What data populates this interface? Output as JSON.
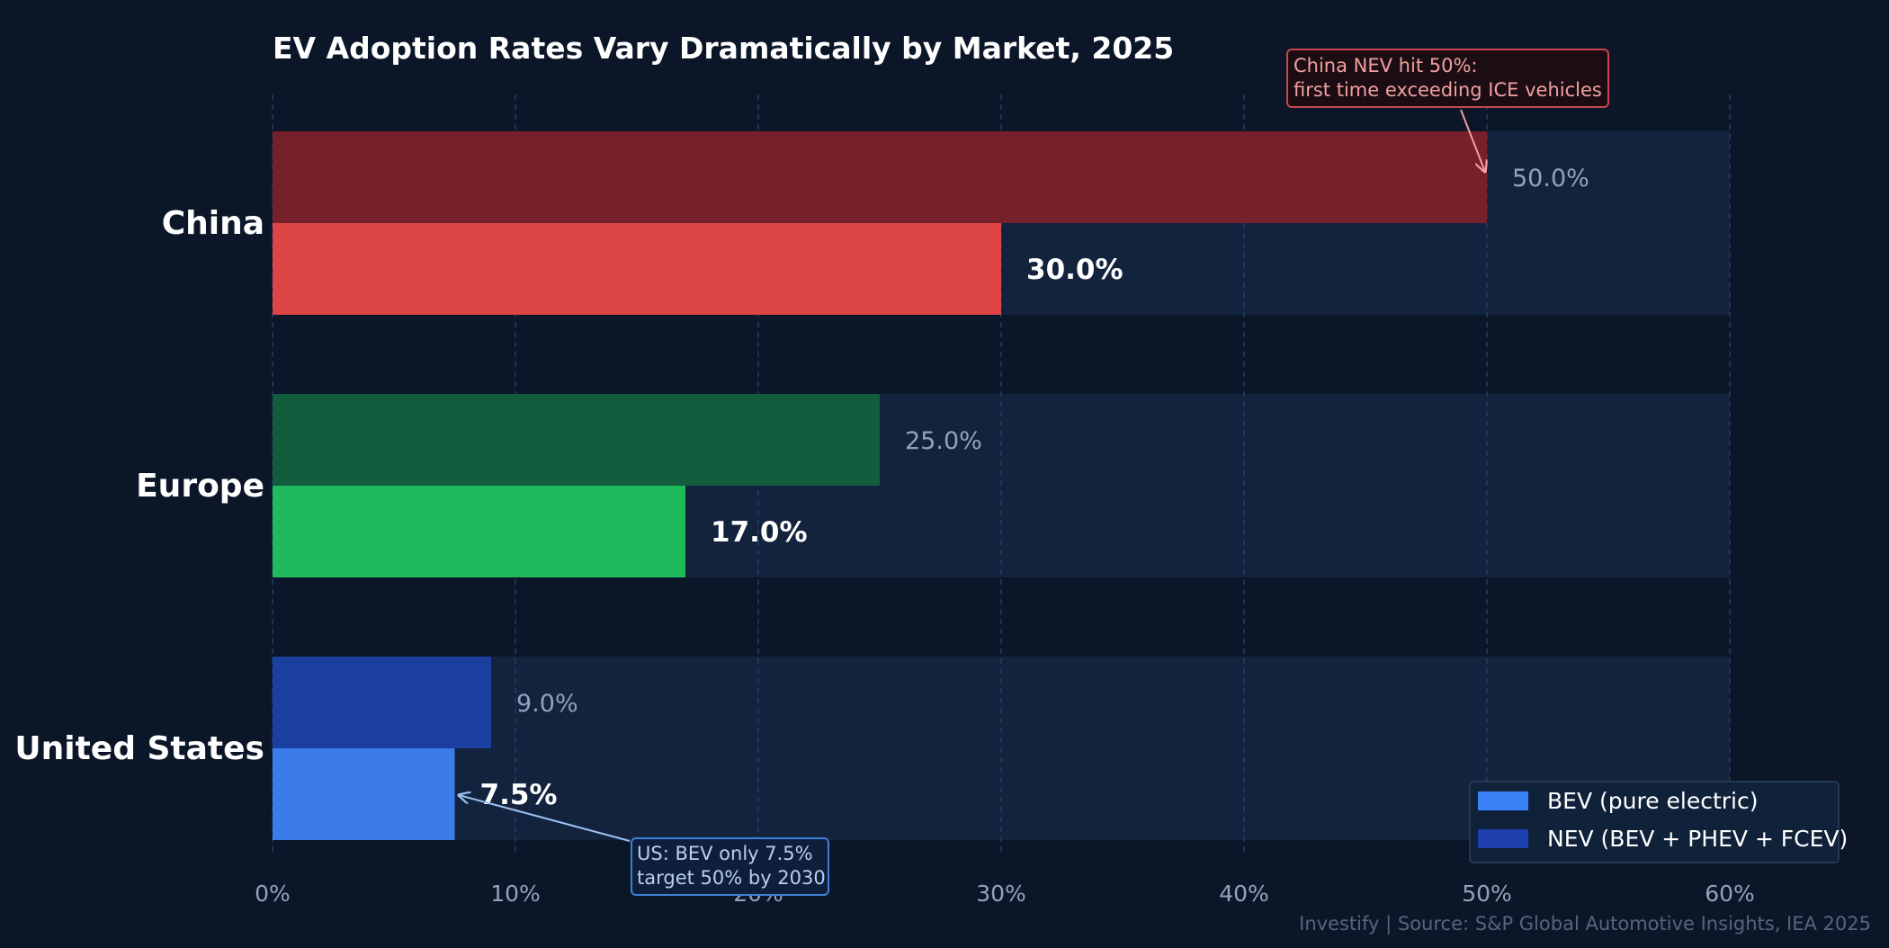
{
  "chart_data": {
    "type": "bar",
    "orientation": "horizontal",
    "title": "EV Adoption Rates Vary Dramatically by Market, 2025",
    "categories": [
      "China",
      "Europe",
      "United States"
    ],
    "series": [
      {
        "name": "BEV (pure electric)",
        "values": [
          30.0,
          17.0,
          7.5
        ],
        "value_labels": [
          "30.0%",
          "17.0%",
          "7.5%"
        ]
      },
      {
        "name": "NEV (BEV + PHEV + FCEV)",
        "values": [
          50.0,
          25.0,
          9.0
        ],
        "value_labels": [
          "50.0%",
          "25.0%",
          "9.0%"
        ]
      }
    ],
    "bar_colors": {
      "China": {
        "bev": "#dc4446",
        "nev": "#76202c"
      },
      "Europe": {
        "bev": "#20b95c",
        "nev": "#115d3e"
      },
      "United States": {
        "bev": "#3b7cea",
        "nev": "#1a3f9e"
      }
    },
    "legend_colors": {
      "bev": "#3b82f6",
      "nev": "#1e40af"
    },
    "xlim": [
      0,
      60
    ],
    "x_ticks": [
      "0%",
      "10%",
      "20%",
      "30%",
      "40%",
      "50%",
      "60%"
    ],
    "xlabel": "",
    "ylabel": "",
    "grid": "vertical dashed",
    "legend_position": "bottom-right",
    "annotations": [
      {
        "lines": [
          "China NEV hit 50%:",
          "first time exceeding ICE vehicles"
        ],
        "points_to": {
          "category": "China",
          "series": "NEV",
          "x": 50
        }
      },
      {
        "lines": [
          "US: BEV only 7.5%",
          "target 50% by 2030"
        ],
        "points_to": {
          "category": "United States",
          "series": "BEV",
          "x": 7.5
        }
      }
    ],
    "source": "Investify  |  Source: S&P Global Automotive Insights, IEA 2025"
  }
}
